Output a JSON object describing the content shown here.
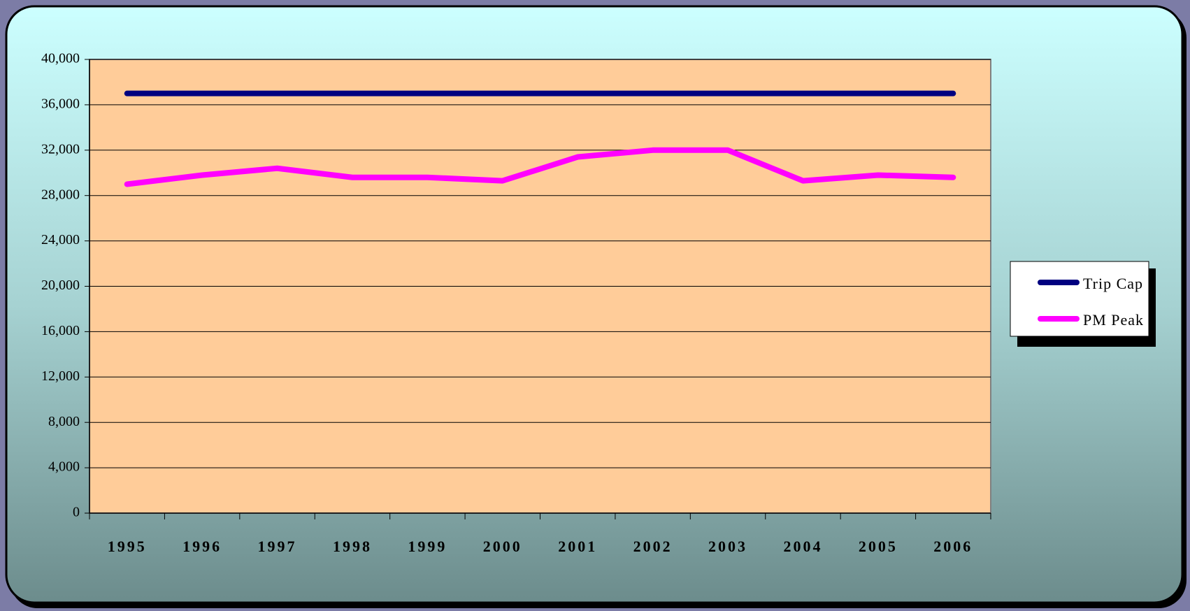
{
  "chart_data": {
    "type": "line",
    "categories": [
      "1995",
      "1996",
      "1997",
      "1998",
      "1999",
      "2000",
      "2001",
      "2002",
      "2003",
      "2004",
      "2005",
      "2006"
    ],
    "series": [
      {
        "name": "Trip Cap",
        "color": "#000080",
        "values": [
          37000,
          37000,
          37000,
          37000,
          37000,
          37000,
          37000,
          37000,
          37000,
          37000,
          37000,
          37000
        ]
      },
      {
        "name": "PM Peak",
        "color": "#ff00ff",
        "values": [
          29000,
          29800,
          30400,
          29600,
          29600,
          29300,
          31400,
          32000,
          32000,
          29300,
          29800,
          29600
        ]
      }
    ],
    "ylim": [
      0,
      40000
    ],
    "yticks": [
      0,
      {
        "value": 4000,
        "label": "4,000"
      },
      {
        "value": 8000,
        "label": "8,000"
      },
      {
        "value": 12000,
        "label": "12,000"
      },
      {
        "value": 16000,
        "label": "16,000"
      },
      {
        "value": 20000,
        "label": "20,000"
      },
      {
        "value": 24000,
        "label": "24,000"
      },
      {
        "value": 28000,
        "label": "28,000"
      },
      {
        "value": 32000,
        "label": "32,000"
      },
      {
        "value": 36000,
        "label": "36,000"
      },
      {
        "value": 40000,
        "label": "40,000"
      }
    ],
    "grid": true,
    "legend": "right"
  }
}
